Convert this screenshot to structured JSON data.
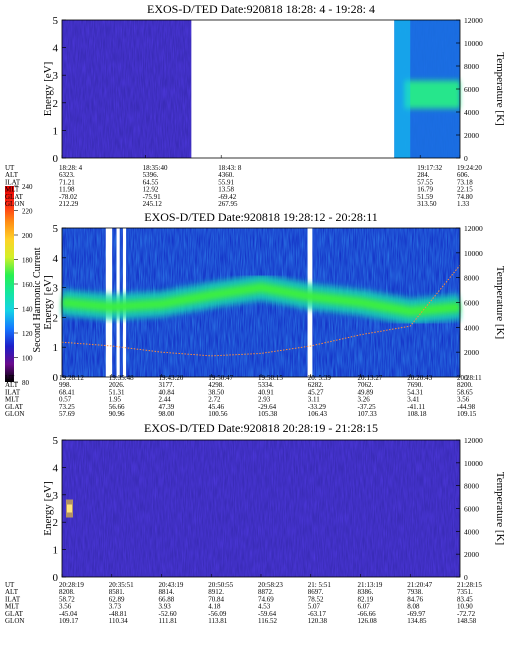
{
  "colorbar": {
    "label": "Second Harmonic Current",
    "ticks": [
      "240",
      "220",
      "200",
      "180",
      "160",
      "140",
      "120",
      "100",
      "80"
    ],
    "colors": [
      "#000000",
      "#6a0a8c",
      "#1e1ec8",
      "#1478ff",
      "#14d2e6",
      "#14e6a0",
      "#28f050",
      "#d2f028",
      "#ffd228",
      "#ff8c14",
      "#ff2814",
      "#e60000"
    ]
  },
  "panels": [
    {
      "title": "EXOS-D/TED   Date:920818  18:28: 4 - 19:28: 4",
      "ylabel": "Energy [eV]",
      "y2label": "Temperature [K]",
      "yticks": [
        "0",
        "1",
        "2",
        "3",
        "4",
        "5"
      ],
      "y2ticks": [
        "0",
        "2000",
        "4000",
        "6000",
        "8000",
        "10000",
        "12000"
      ],
      "rows": [
        {
          "name": "UT",
          "values": [
            "18:28: 4",
            "18:35:40",
            "18:43: 8",
            "19:17:32",
            "19:24:20"
          ]
        },
        {
          "name": "ALT",
          "values": [
            "6323.",
            "5396.",
            "4360.",
            "284.",
            "606."
          ]
        },
        {
          "name": "ILAT",
          "values": [
            "71.21",
            "64.55",
            "55.91",
            "57.55",
            "73.18"
          ]
        },
        {
          "name": "MLT",
          "values": [
            "11.98",
            "12.92",
            "13.58",
            "16.79",
            "22.15"
          ]
        },
        {
          "name": "GLAT",
          "values": [
            "-78.02",
            "-75.91",
            "-69.42",
            "51.59",
            "74.80"
          ]
        },
        {
          "name": "GLON",
          "values": [
            "212.29",
            "245.12",
            "267.95",
            "313.50",
            "1.33"
          ]
        }
      ],
      "label_pos": [
        0.0,
        0.21,
        0.4,
        0.9,
        1.0
      ]
    },
    {
      "title": "EXOS-D/TED   Date:920818  19:28:12 - 20:28:11",
      "ylabel": "Energy [eV]",
      "y2label": "Temperature [K]",
      "yticks": [
        "0",
        "1",
        "2",
        "3",
        "4",
        "5"
      ],
      "y2ticks": [
        "0",
        "2000",
        "4000",
        "6000",
        "8000",
        "10000",
        "12000"
      ],
      "rows": [
        {
          "name": "UT",
          "values": [
            "19:28:12",
            "19:35:48",
            "19:43:20",
            "19:50:47",
            "19:58:15",
            "20: 5:39",
            "20:13:27",
            "20:20:43",
            "20:28:11"
          ]
        },
        {
          "name": "ALT",
          "values": [
            "998.",
            "2026.",
            "3177.",
            "4298.",
            "5334.",
            "6282.",
            "7062.",
            "7690.",
            "8200."
          ]
        },
        {
          "name": "ILAT",
          "values": [
            "68.41",
            "51.31",
            "40.84",
            "38.50",
            "40.91",
            "45.27",
            "49.89",
            "54.31",
            "58.65"
          ]
        },
        {
          "name": "MLT",
          "values": [
            "0.57",
            "1.95",
            "2.44",
            "2.72",
            "2.93",
            "3.11",
            "3.26",
            "3.41",
            "3.56"
          ]
        },
        {
          "name": "GLAT",
          "values": [
            "73.25",
            "56.66",
            "47.39",
            "45.46",
            "-29.64",
            "-33.29",
            "-37.25",
            "-41.11",
            "-44.98"
          ]
        },
        {
          "name": "GLON",
          "values": [
            "57.69",
            "90.96",
            "98.00",
            "100.56",
            "105.38",
            "106.43",
            "107.33",
            "108.18",
            "109.15"
          ]
        }
      ],
      "label_pos": [
        0.0,
        0.125,
        0.25,
        0.375,
        0.5,
        0.625,
        0.75,
        0.875,
        1.0
      ]
    },
    {
      "title": "EXOS-D/TED   Date:920818  20:28:19 - 21:28:15",
      "ylabel": "Energy [eV]",
      "y2label": "Temperature [K]",
      "yticks": [
        "0",
        "1",
        "2",
        "3",
        "4",
        "5"
      ],
      "y2ticks": [
        "0",
        "2000",
        "4000",
        "6000",
        "8000",
        "10000",
        "12000"
      ],
      "rows": [
        {
          "name": "UT",
          "values": [
            "20:28:19",
            "20:35:51",
            "20:43:19",
            "20:50:55",
            "20:58:23",
            "21: 5:51",
            "21:13:19",
            "21:20:47",
            "21:28:15"
          ]
        },
        {
          "name": "ALT",
          "values": [
            "8208.",
            "8581.",
            "8814.",
            "8912.",
            "8872.",
            "8697.",
            "8386.",
            "7938.",
            "7351."
          ]
        },
        {
          "name": "ILAT",
          "values": [
            "58.72",
            "62.89",
            "66.88",
            "70.84",
            "74.69",
            "78.52",
            "82.19",
            "84.76",
            "83.45"
          ]
        },
        {
          "name": "MLT",
          "values": [
            "3.56",
            "3.73",
            "3.93",
            "4.18",
            "4.53",
            "5.07",
            "6.07",
            "8.08",
            "10.90"
          ]
        },
        {
          "name": "GLAT",
          "values": [
            "-45.04",
            "-48.81",
            "-52.60",
            "-56.09",
            "-59.64",
            "-63.17",
            "-66.66",
            "-69.97",
            "-72.72"
          ]
        },
        {
          "name": "GLON",
          "values": [
            "109.17",
            "110.34",
            "111.81",
            "113.81",
            "116.52",
            "120.38",
            "126.08",
            "134.85",
            "148.58"
          ]
        }
      ],
      "label_pos": [
        0.0,
        0.125,
        0.25,
        0.375,
        0.5,
        0.625,
        0.75,
        0.875,
        1.0
      ]
    }
  ],
  "chart_data": [
    {
      "type": "heatmap",
      "title": "EXOS-D/TED   Date:920818  18:28: 4 - 19:28: 4",
      "xlabel": "UT",
      "ylabel": "Energy [eV]",
      "y2label": "Temperature [K]",
      "ylim": [
        0,
        5
      ],
      "y2lim": [
        0,
        12000
      ],
      "x": [
        "18:28: 4",
        "18:35:40",
        "18:43: 8",
        "19:17:32",
        "19:24:20"
      ],
      "data_gaps": [
        [
          "18:46",
          "19:17"
        ]
      ],
      "bands": [
        {
          "x_start": "19:17:32",
          "x_end": "19:28: 4",
          "energy_center": 2.3,
          "energy_width": 0.8,
          "level": "high"
        }
      ]
    },
    {
      "type": "heatmap",
      "title": "EXOS-D/TED   Date:920818  19:28:12 - 20:28:11",
      "xlabel": "UT",
      "ylabel": "Energy [eV]",
      "y2label": "Temperature [K]",
      "ylim": [
        0,
        5
      ],
      "y2lim": [
        0,
        12000
      ],
      "x": [
        "19:28:12",
        "19:35:48",
        "19:43:20",
        "19:50:47",
        "19:58:15",
        "20: 5:39",
        "20:13:27",
        "20:20:43",
        "20:28:11"
      ],
      "band": {
        "x": [
          "19:28:12",
          "19:35:48",
          "19:43:20",
          "19:50:47",
          "19:58:15",
          "20: 5:39",
          "20:13:27",
          "20:20:43",
          "20:28:11"
        ],
        "energy": [
          2.5,
          2.35,
          2.45,
          2.75,
          3.0,
          2.7,
          2.5,
          2.2,
          2.35
        ]
      },
      "temperature_series": {
        "x": [
          "19:28:12",
          "19:35:48",
          "19:43:20",
          "19:50:47",
          "19:58:15",
          "20: 5:39",
          "20:13:27",
          "20:20:43",
          "20:28:11"
        ],
        "values": [
          2800,
          2500,
          2000,
          1700,
          1900,
          2500,
          3400,
          4100,
          9000
        ]
      }
    },
    {
      "type": "heatmap",
      "title": "EXOS-D/TED   Date:920818  20:28:19 - 21:28:15",
      "xlabel": "UT",
      "ylabel": "Energy [eV]",
      "y2label": "Temperature [K]",
      "ylim": [
        0,
        5
      ],
      "y2lim": [
        0,
        12000
      ],
      "x": [
        "20:28:19",
        "20:35:51",
        "20:43:19",
        "20:50:55",
        "20:58:23",
        "21: 5:51",
        "21:13:19",
        "21:20:47",
        "21:28:15"
      ],
      "bands": [
        {
          "x_start": "20:28:19",
          "x_end": "20:29:30",
          "energy_center": 2.5,
          "energy_width": 0.3,
          "level": "high"
        }
      ]
    }
  ]
}
